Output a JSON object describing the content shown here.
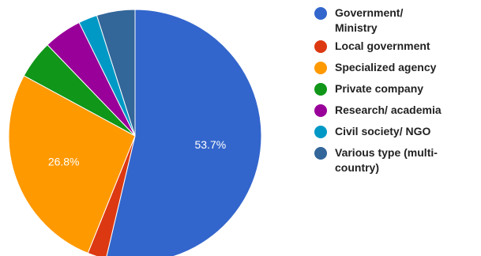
{
  "chart_data": {
    "type": "pie",
    "slices": [
      {
        "label": "Government/ Ministry",
        "value": 53.7,
        "color": "#3366cc",
        "data_label": "53.7%"
      },
      {
        "label": "Local government",
        "value": 2.4,
        "color": "#dc3912",
        "data_label": ""
      },
      {
        "label": "Specialized agency",
        "value": 26.8,
        "color": "#ff9900",
        "data_label": "26.8%"
      },
      {
        "label": "Private company",
        "value": 4.9,
        "color": "#109618",
        "data_label": ""
      },
      {
        "label": "Research/ academia",
        "value": 4.9,
        "color": "#990099",
        "data_label": ""
      },
      {
        "label": "Civil society/ NGO",
        "value": 2.4,
        "color": "#0099c6",
        "data_label": ""
      },
      {
        "label": "Various type (multi-country)",
        "value": 4.9,
        "color": "#336699",
        "data_label": ""
      }
    ],
    "legend": {
      "position": "right",
      "items": [
        {
          "lines": [
            "Government/",
            "Ministry"
          ]
        },
        {
          "lines": [
            "Local government"
          ]
        },
        {
          "lines": [
            "Specialized agency"
          ]
        },
        {
          "lines": [
            "Private company"
          ]
        },
        {
          "lines": [
            "Research/ academia"
          ]
        },
        {
          "lines": [
            "Civil society/ NGO"
          ]
        },
        {
          "lines": [
            "Various type (multi-",
            "country)"
          ]
        }
      ]
    }
  }
}
